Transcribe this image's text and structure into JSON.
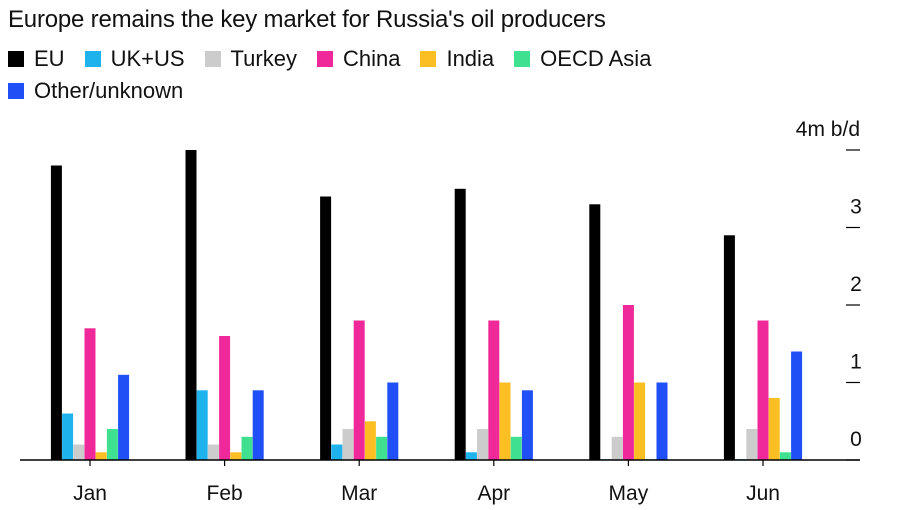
{
  "chart_data": {
    "type": "bar",
    "title": "Europe remains the key market for Russia's oil producers",
    "unit_label": "4m b/d",
    "categories": [
      "Jan",
      "Feb",
      "Mar",
      "Apr",
      "May",
      "Jun"
    ],
    "yticks": [
      0,
      1,
      2,
      3,
      4
    ],
    "ytick_labels": [
      "0",
      "1",
      "2",
      "3",
      ""
    ],
    "ylim": [
      0,
      4
    ],
    "grid": false,
    "legend_position": "top",
    "series": [
      {
        "name": "EU",
        "color": "#000000",
        "values": [
          3.8,
          4.0,
          3.4,
          3.5,
          3.3,
          2.9
        ]
      },
      {
        "name": "UK+US",
        "color": "#1fb3ee",
        "values": [
          0.6,
          0.9,
          0.2,
          0.1,
          0.01,
          0.01
        ]
      },
      {
        "name": "Turkey",
        "color": "#cccccc",
        "values": [
          0.2,
          0.2,
          0.4,
          0.4,
          0.3,
          0.4
        ]
      },
      {
        "name": "China",
        "color": "#f0299a",
        "values": [
          1.7,
          1.6,
          1.8,
          1.8,
          2.0,
          1.8
        ]
      },
      {
        "name": "India",
        "color": "#fbbf23",
        "values": [
          0.1,
          0.1,
          0.5,
          1.0,
          1.0,
          0.8
        ]
      },
      {
        "name": "OECD Asia",
        "color": "#3fe08f",
        "values": [
          0.4,
          0.3,
          0.3,
          0.3,
          0.01,
          0.1
        ]
      },
      {
        "name": "Other/unknown",
        "color": "#1f4ff5",
        "values": [
          1.1,
          0.9,
          1.0,
          0.9,
          1.0,
          1.4
        ]
      }
    ]
  }
}
